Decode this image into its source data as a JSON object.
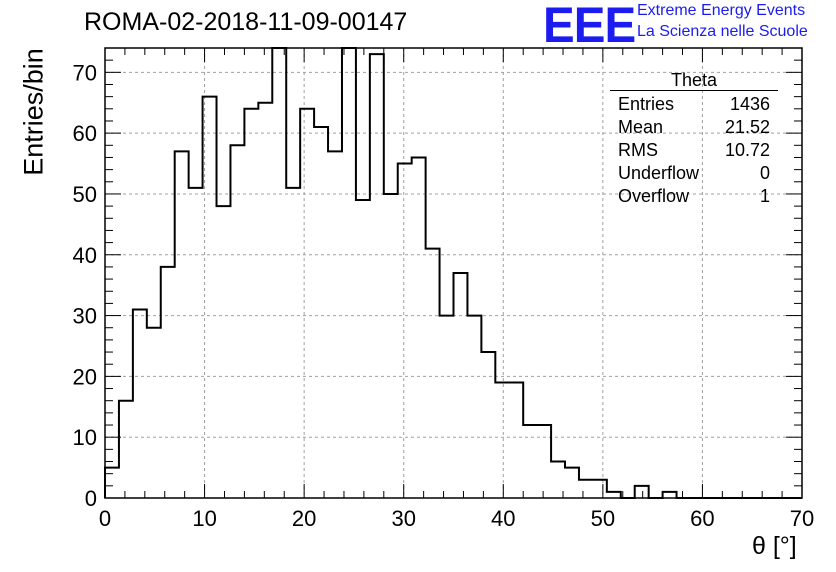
{
  "header": {
    "run_title": "ROMA-02-2018-11-09-00147",
    "logo_text": "EEE",
    "logo_line1": "Extreme Energy Events",
    "logo_line2": "La Scienza nelle Scuole"
  },
  "stats_box": {
    "title": "Theta",
    "rows": [
      {
        "label": "Entries",
        "value": "1436"
      },
      {
        "label": "Mean",
        "value": "21.52"
      },
      {
        "label": "RMS",
        "value": "10.72"
      },
      {
        "label": "Underflow",
        "value": "0"
      },
      {
        "label": "Overflow",
        "value": "1"
      }
    ]
  },
  "colors": {
    "histogram_line": "#000000",
    "grid": "#a0a0a0",
    "logo": "#1c1cf0"
  },
  "chart_data": {
    "type": "bar",
    "histogram": true,
    "xlabel": "θ [°]",
    "ylabel": "Entries/bin",
    "xlim": [
      0,
      70
    ],
    "ylim": [
      0,
      74
    ],
    "grid": true,
    "bin_width": 1.4,
    "x_ticks": [
      0,
      10,
      20,
      30,
      40,
      50,
      60,
      70
    ],
    "y_ticks": [
      0,
      10,
      20,
      30,
      40,
      50,
      60,
      70
    ],
    "bin_edges_start": 0,
    "values": [
      5,
      16,
      31,
      28,
      38,
      57,
      51,
      66,
      48,
      58,
      64,
      65,
      74,
      51,
      64,
      61,
      57,
      74,
      49,
      73,
      50,
      55,
      56,
      41,
      30,
      37,
      30,
      24,
      19,
      19,
      12,
      12,
      6,
      5,
      3,
      3,
      1,
      0,
      2,
      0,
      1,
      0,
      0,
      0,
      0,
      0,
      0,
      0,
      0,
      0
    ]
  }
}
